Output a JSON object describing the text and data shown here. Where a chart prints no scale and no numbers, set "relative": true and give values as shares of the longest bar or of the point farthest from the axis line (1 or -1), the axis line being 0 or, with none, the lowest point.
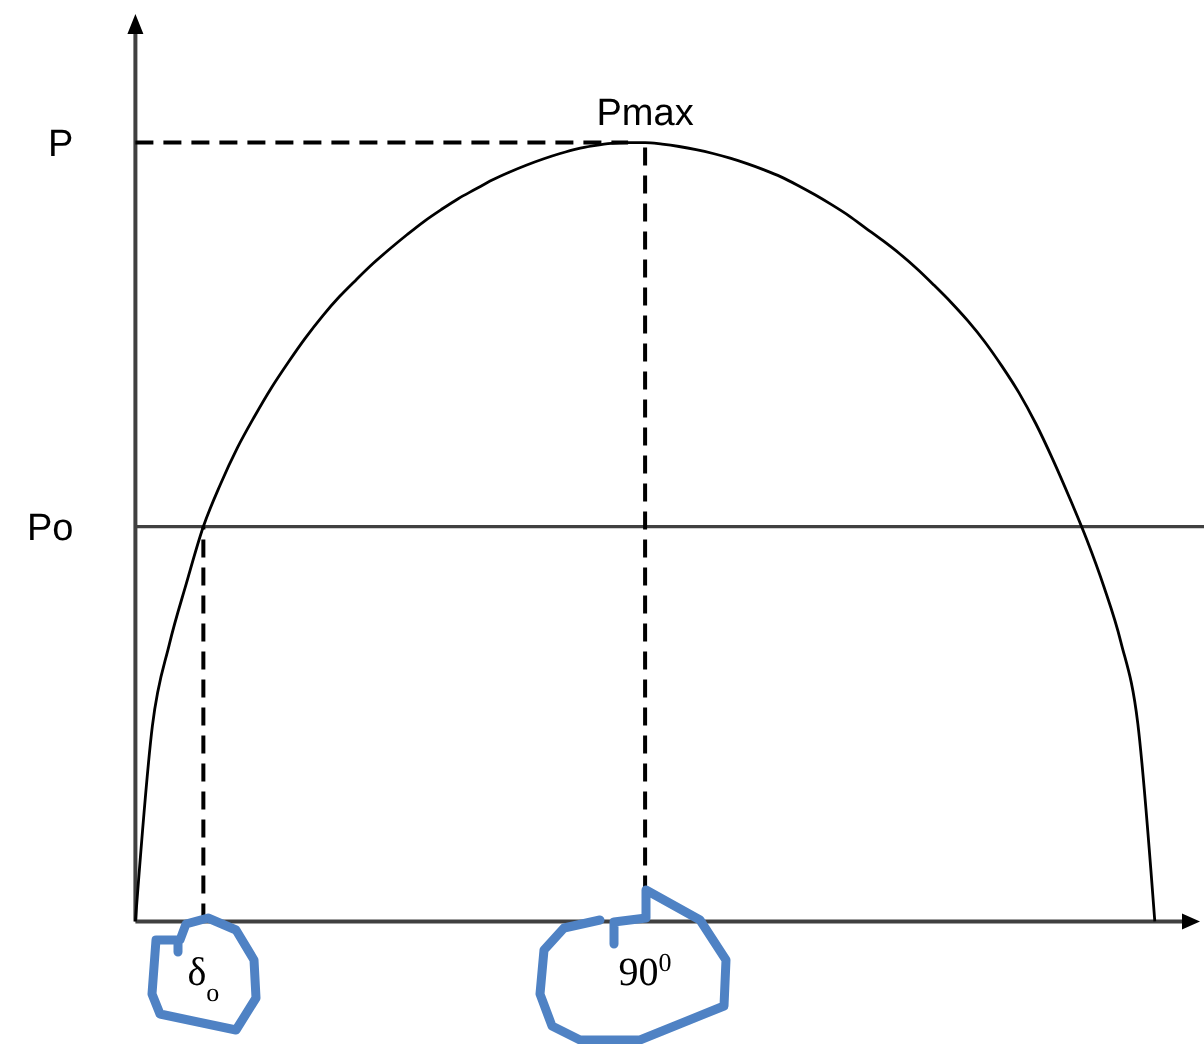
{
  "chart_data": {
    "type": "line",
    "relative": true,
    "categories": [
      null,
      null,
      null,
      null,
      "δ$_{o}$",
      null,
      null,
      null,
      null,
      null,
      null,
      null,
      null,
      null,
      null,
      null,
      null,
      null,
      null,
      null,
      null,
      null,
      null,
      null,
      null,
      null,
      null,
      null,
      null,
      null,
      "90$^{0}$",
      null,
      null,
      null,
      null,
      null,
      null,
      null,
      null,
      null,
      null,
      null,
      null,
      null,
      null,
      null,
      null,
      null,
      null,
      null,
      null,
      null,
      null,
      null,
      null,
      null,
      null,
      null,
      null,
      null,
      null
    ],
    "series": [
      {
        "color": "#000000",
        "values": [
          0,
          0.251,
          0.356,
          0.434,
          0.507,
          0.561,
          0.608,
          0.648,
          0.685,
          0.718,
          0.749,
          0.777,
          0.802,
          0.824,
          0.845,
          0.864,
          0.882,
          0.899,
          0.914,
          0.928,
          0.94,
          0.952,
          0.962,
          0.971,
          0.979,
          0.986,
          0.992,
          0.996,
          0.999,
          1,
          1,
          0.998,
          0.995,
          0.991,
          0.986,
          0.98,
          0.973,
          0.965,
          0.956,
          0.945,
          0.933,
          0.92,
          0.906,
          0.89,
          0.874,
          0.857,
          0.838,
          0.817,
          0.795,
          0.771,
          0.744,
          0.713,
          0.679,
          0.639,
          0.593,
          0.543,
          0.49,
          0.43,
          0.359,
          0.254,
          0
        ]
      }
    ],
    "ref_lines": [
      {
        "axis": "y",
        "value": 1,
        "label": "P",
        "line_style": "dashed",
        "color": "#000000"
      },
      {
        "axis": "y",
        "value": 0.507,
        "label": "Po",
        "line_style": "solid",
        "color": "#404040"
      },
      {
        "axis": "x",
        "value": "90$^{0}$",
        "line_style": "dashed",
        "color": "#000000"
      },
      {
        "axis": "x",
        "value": "δ$_{o}$",
        "line_style": "dashed",
        "color": "#000000"
      }
    ],
    "annotations": [
      {
        "text": "Pmax",
        "x": "90$^{0}$",
        "y": 1
      }
    ]
  }
}
